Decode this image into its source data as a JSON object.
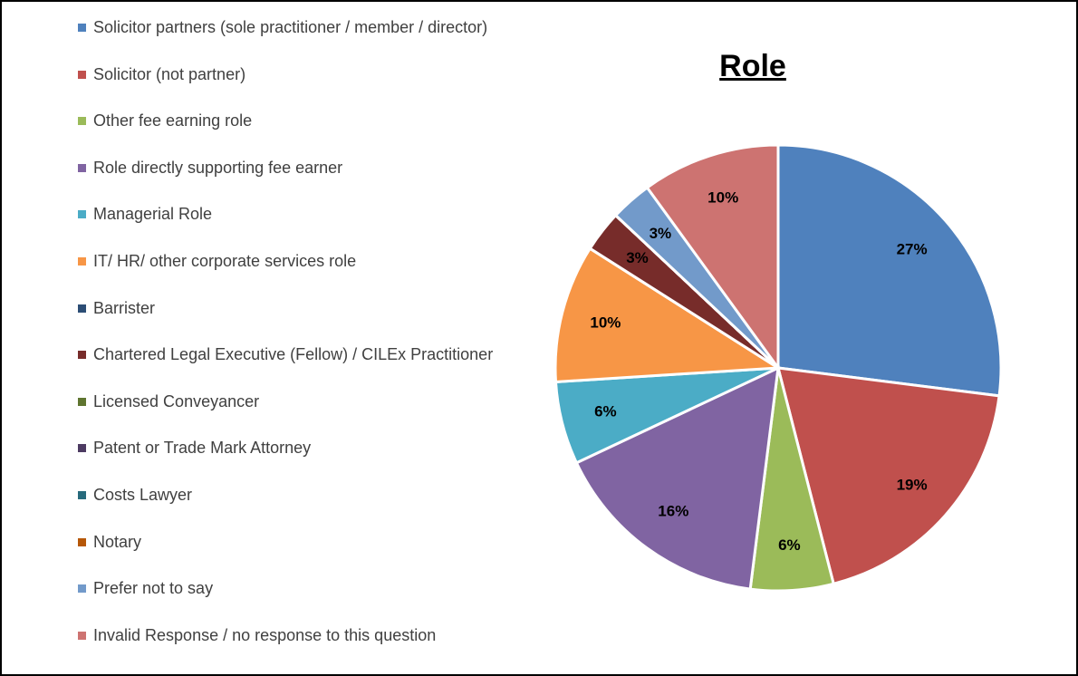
{
  "chart_data": {
    "type": "pie",
    "title": "Role",
    "categories": [
      "Solicitor partners (sole practitioner / member / director)",
      "Solicitor (not partner)",
      "Other fee earning role",
      "Role directly supporting fee earner",
      "Managerial Role",
      "IT/ HR/ other corporate services role",
      "Barrister",
      "Chartered Legal Executive (Fellow) / CILEx Practitioner",
      "Licensed Conveyancer",
      "Patent or Trade Mark Attorney",
      "Costs Lawyer",
      "Notary",
      "Prefer not to say",
      "Invalid Response / no response to this question"
    ],
    "values": [
      27,
      19,
      6,
      16,
      6,
      10,
      0,
      3,
      0,
      0,
      0,
      0,
      3,
      10
    ],
    "value_labels": [
      "27%",
      "19%",
      "6%",
      "16%",
      "6%",
      "10%",
      null,
      "3%",
      null,
      null,
      null,
      null,
      "3%",
      "10%"
    ],
    "colors": [
      "#4f81bd",
      "#c0504d",
      "#9bbb59",
      "#8064a2",
      "#4bacc6",
      "#f79646",
      "#2c4d75",
      "#772c2a",
      "#5f7530",
      "#4d3b62",
      "#276a7c",
      "#b65708",
      "#729aca",
      "#cd7371"
    ],
    "legend": "left"
  }
}
